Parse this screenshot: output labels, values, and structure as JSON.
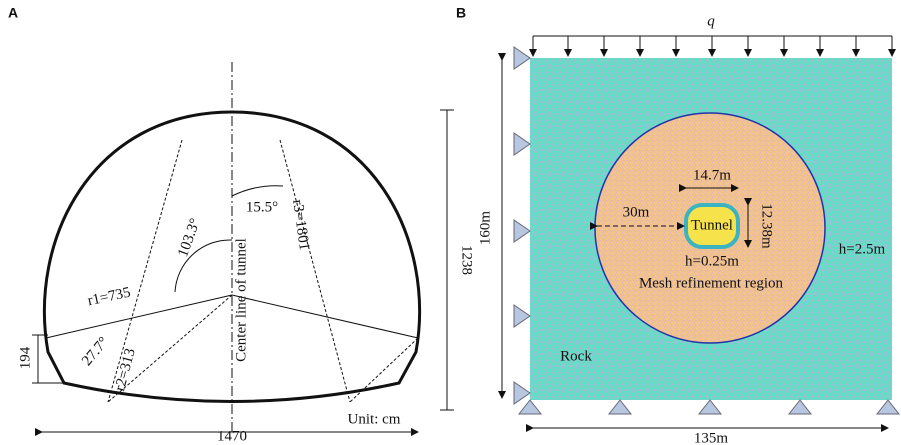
{
  "panel_a": {
    "label": "A",
    "width": "1470",
    "height": "1238",
    "wall_height": "194",
    "r1": "r1=735",
    "r2": "r2=313",
    "r3": "r3=1801",
    "angle_1": "103.3°",
    "angle_2": "15.5°",
    "angle_3": "27.7°",
    "center_line": "Center line of tunnel",
    "unit": "Unit: cm"
  },
  "panel_b": {
    "label": "B",
    "load": "q",
    "height": "160m",
    "width": "135m",
    "tunnel_width": "14.7m",
    "tunnel_height": "12.38m",
    "refinement_distance": "30m",
    "tunnel": "Tunnel",
    "tunnel_mesh_size": "h=0.25m",
    "rock_mesh_size": "h=2.5m",
    "refinement_region": "Mesh refinement region",
    "rock": "Rock"
  }
}
